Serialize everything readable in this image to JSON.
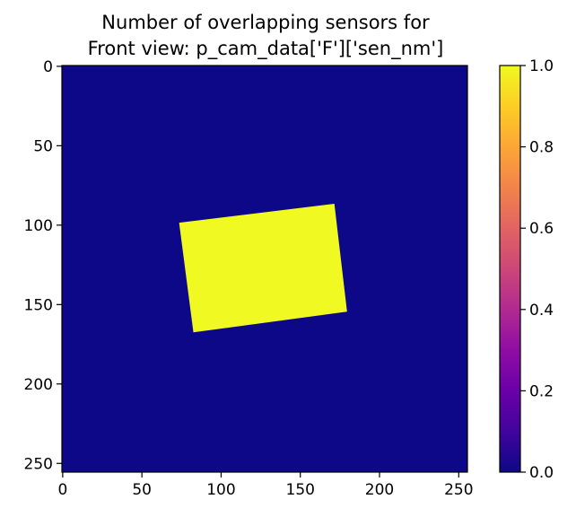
{
  "chart_data": {
    "type": "heatmap",
    "title_lines": [
      "Number of overlapping sensors for",
      "Front view: p_cam_data['F']['sen_nm']"
    ],
    "xlabel": "",
    "ylabel": "",
    "grid_size": [
      256,
      256
    ],
    "xlim": [
      0,
      256
    ],
    "ylim": [
      256,
      0
    ],
    "x_ticks": [
      0,
      50,
      100,
      150,
      200,
      250
    ],
    "y_ticks": [
      0,
      50,
      100,
      150,
      200,
      250
    ],
    "x_tick_labels": [
      "0",
      "50",
      "100",
      "150",
      "200",
      "250"
    ],
    "y_tick_labels": [
      "0",
      "50",
      "100",
      "150",
      "200",
      "250"
    ],
    "colormap": "plasma",
    "background_value": 0,
    "background_color": "#0d0887",
    "highlight_value": 1,
    "highlight_color": "#f0f921",
    "highlight_region_corners": [
      [
        74,
        99
      ],
      [
        172,
        87
      ],
      [
        180,
        155
      ],
      [
        83,
        168
      ]
    ],
    "colorbar": {
      "range": [
        0.0,
        1.0
      ],
      "ticks": [
        0.0,
        0.2,
        0.4,
        0.6,
        0.8,
        1.0
      ],
      "tick_labels": [
        "0.0",
        "0.2",
        "0.4",
        "0.6",
        "0.8",
        "1.0"
      ]
    }
  }
}
